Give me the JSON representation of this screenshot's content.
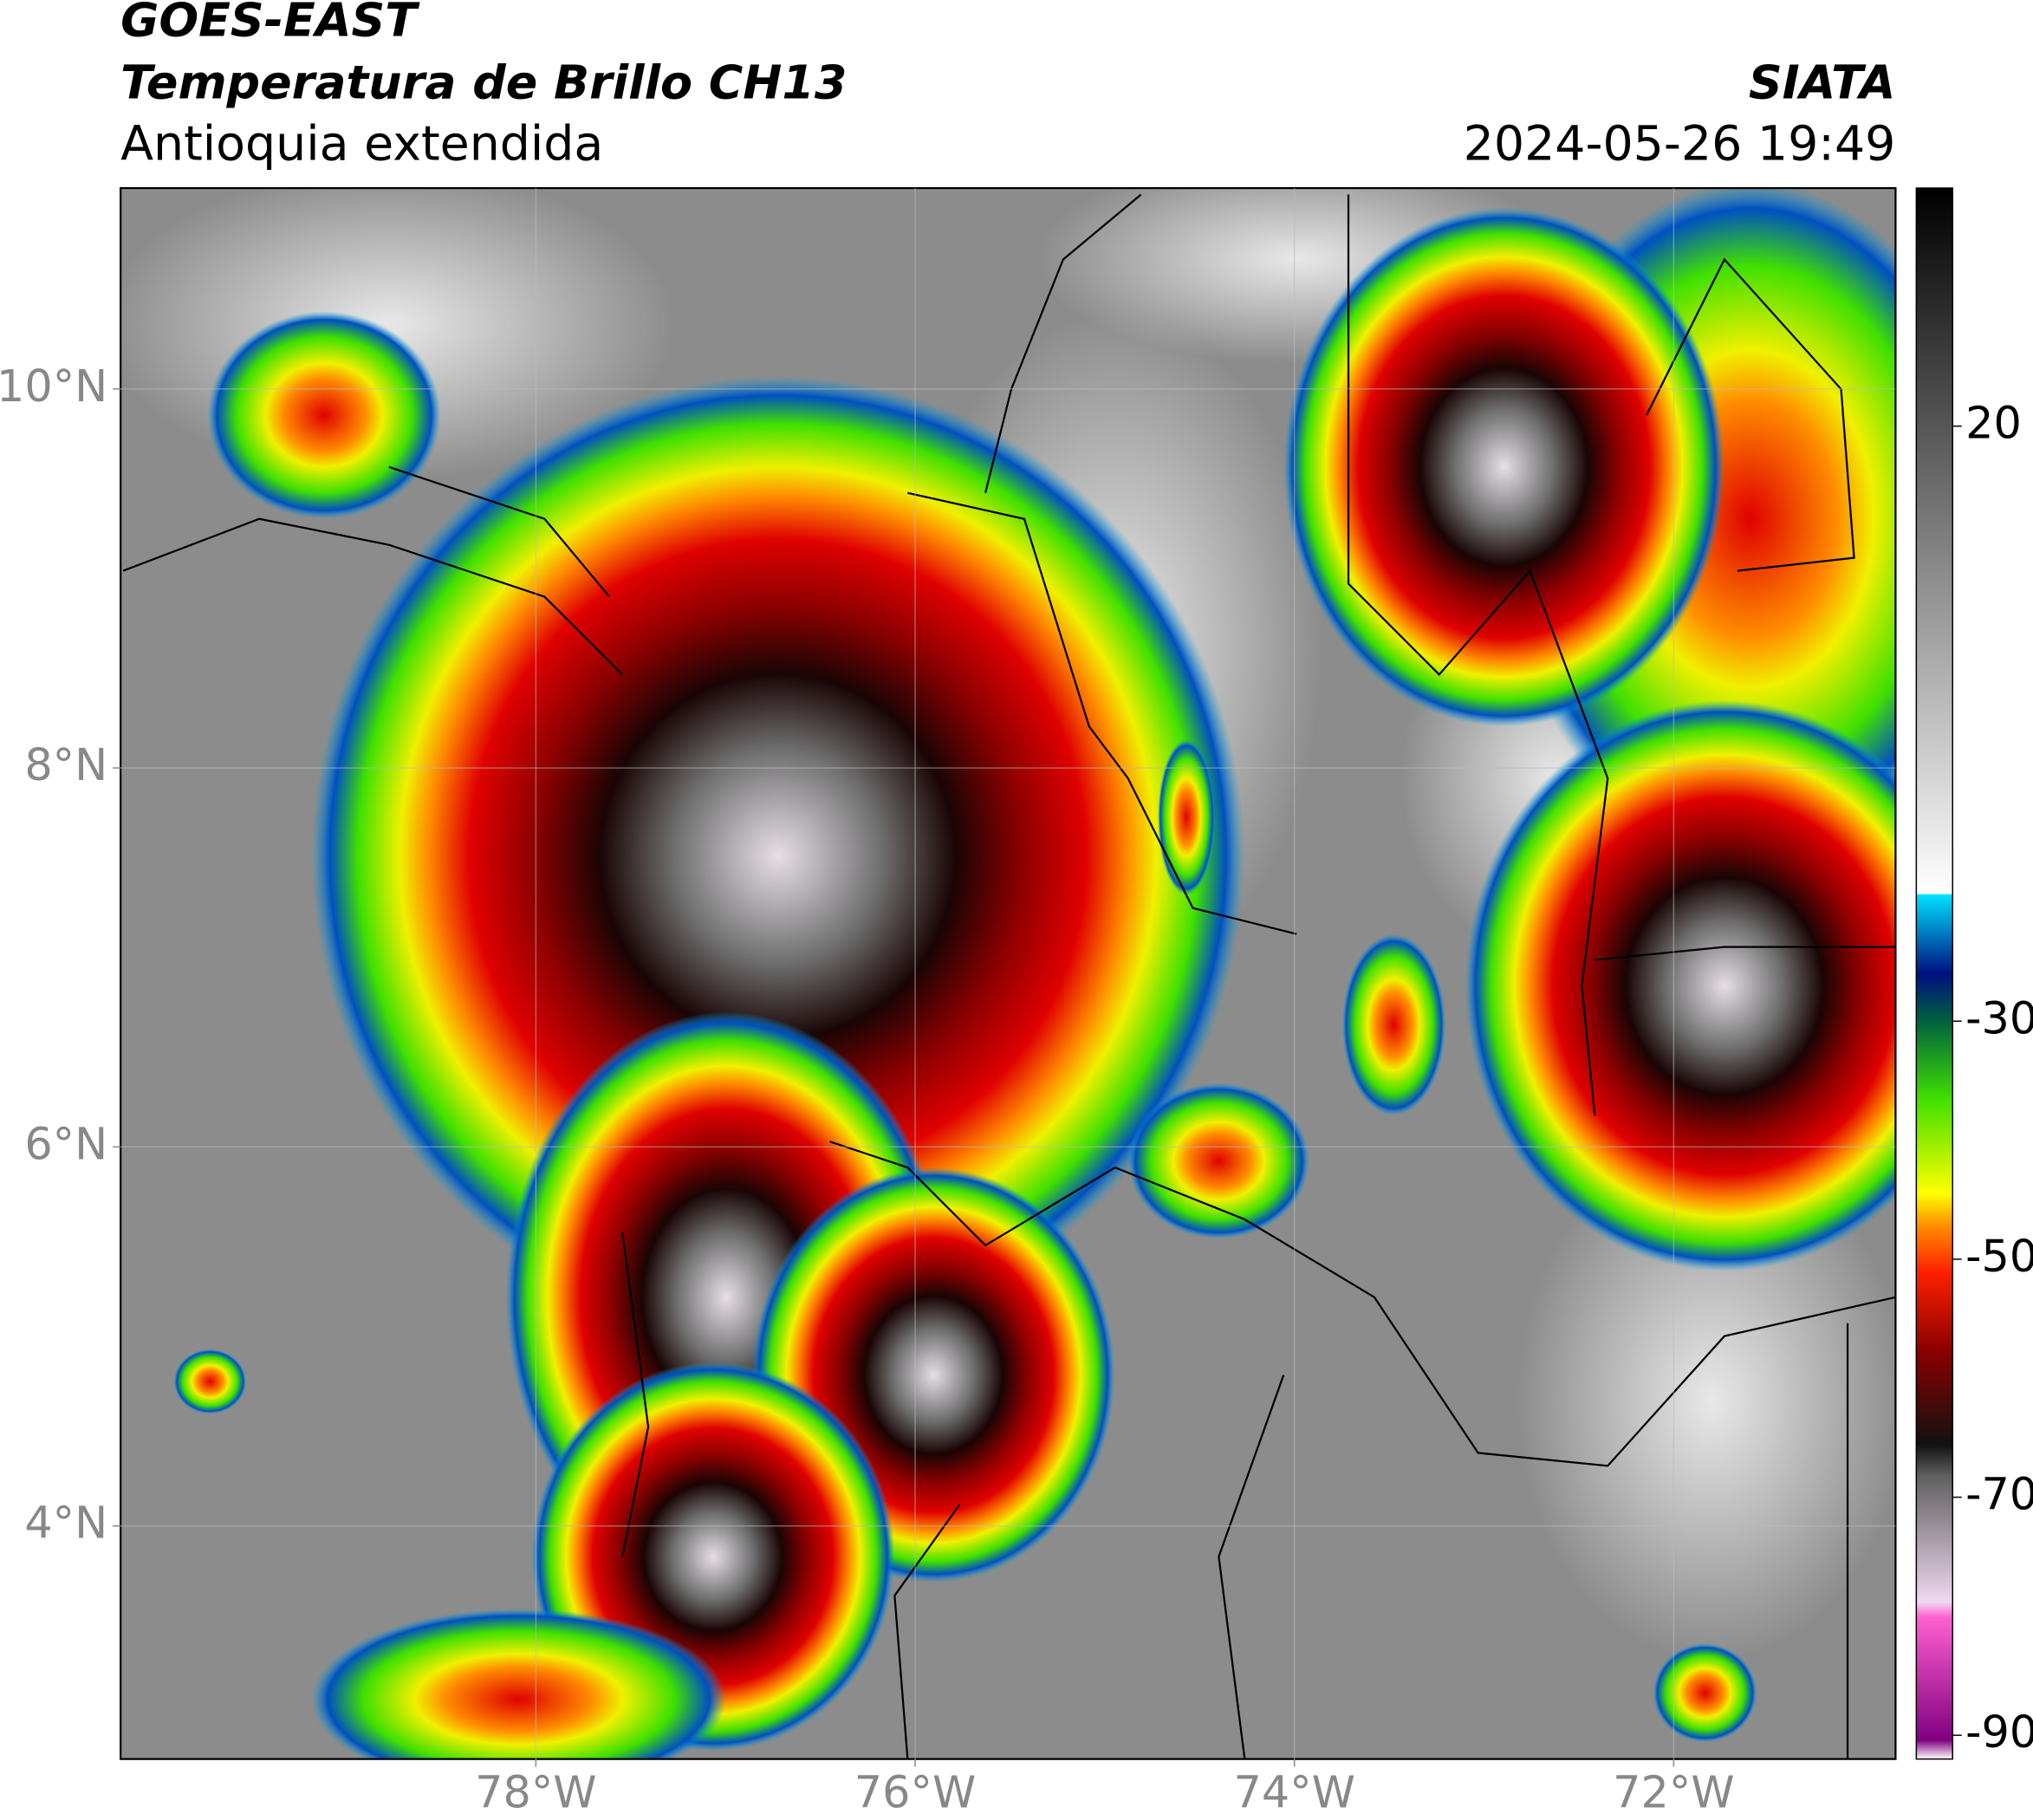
{
  "header": {
    "title": "GOES-EAST",
    "subtitle": "Temperatura de Brillo CH13",
    "region": "Antioquia extendida",
    "source": "SIATA",
    "datetime": "2024-05-26 19:49"
  },
  "map": {
    "xlim": [
      -80.19,
      -70.83
    ],
    "ylim": [
      2.77,
      11.06
    ],
    "xticks": [
      {
        "value": -78,
        "label": "78°W"
      },
      {
        "value": -76,
        "label": "76°W"
      },
      {
        "value": -74,
        "label": "74°W"
      },
      {
        "value": -72,
        "label": "72°W"
      }
    ],
    "yticks": [
      {
        "value": 10,
        "label": "10°N"
      },
      {
        "value": 8,
        "label": "8°N"
      },
      {
        "value": 6,
        "label": "6°N"
      },
      {
        "value": 4,
        "label": "4°N"
      }
    ],
    "grid": true
  },
  "colorbar": {
    "clim": [
      -92,
      40
    ],
    "ticks": [
      20,
      -30,
      -50,
      -70,
      -90
    ]
  }
}
